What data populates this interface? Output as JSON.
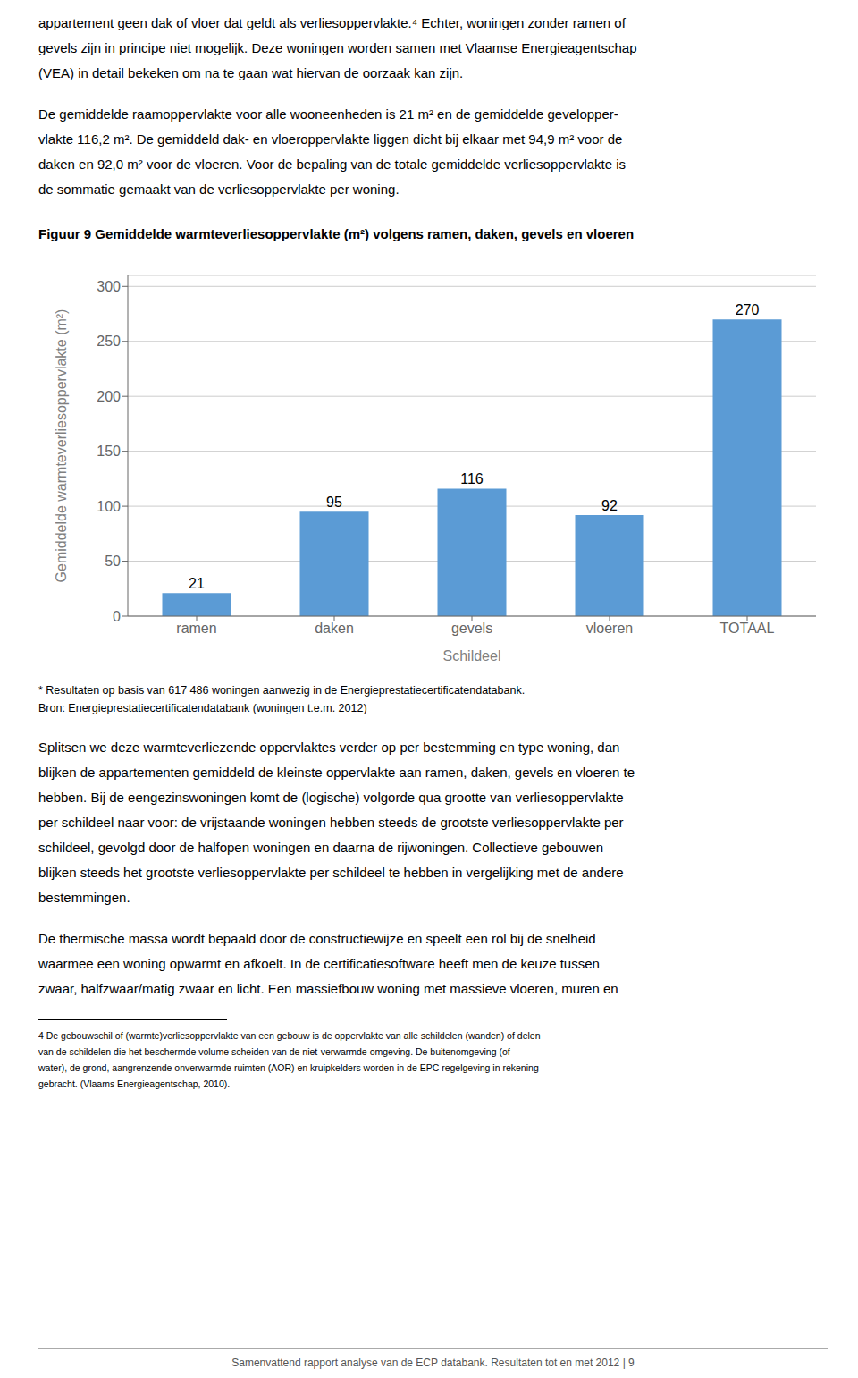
{
  "chart_data": {
    "type": "bar",
    "title": "Figuur 9 Gemiddelde warmteverliesoppervlakte (m²) volgens ramen, daken, gevels en vloeren",
    "categories": [
      "ramen",
      "daken",
      "gevels",
      "vloeren",
      "TOTAAL"
    ],
    "values": [
      21,
      95,
      116,
      92,
      270
    ],
    "color": "#5B9BD5",
    "xlabel": "Schildeel",
    "ylabel": "Gemiddelde warmteverliesoppervlakte (m²)",
    "ylim": [
      0,
      310
    ],
    "yticks": [
      0,
      50,
      100,
      150,
      200,
      250,
      300
    ],
    "grid": true,
    "data_labels": true,
    "annotations": [
      [
        "appartement geen dak of vloer dat geldt als verliesoppervlakte.⁴ Echter, woningen zonder ramen of",
        "gevels zijn in principe niet mogelijk. Deze woningen worden samen met Vlaamse Energieagentschap",
        "(VEA) in detail bekeken om na te gaan wat hiervan de oorzaak kan zijn."
      ],
      [
        "De gemiddelde raamoppervlakte voor alle wooneenheden is 21 m² en de gemiddelde gevelopper-",
        "vlakte 116,2 m². De gemiddeld dak- en vloeroppervlakte liggen dicht bij elkaar met 94,9 m² voor de",
        "daken en 92,0 m² voor de vloeren. Voor de bepaling van de totale gemiddelde verliesoppervlakte is",
        "de sommatie gemaakt van de verliesoppervlakte per woning."
      ],
      [
        "* Resultaten op basis van 617 486 woningen aanwezig in de Energieprestatiecertificatendatabank.",
        "Bron: Energieprestatiecertificatendatabank (woningen t.e.m. 2012)"
      ],
      [
        "Splitsen we deze warmteverliezende oppervlaktes verder op per bestemming en type woning, dan",
        "blijken de appartementen gemiddeld de kleinste oppervlakte aan ramen, daken, gevels en vloeren te",
        "hebben. Bij de eengezinswoningen komt de (logische) volgorde qua grootte van verliesoppervlakte",
        "per schildeel naar voor: de vrijstaande woningen hebben steeds de grootste verliesoppervlakte per",
        "schildeel, gevolgd door de halfopen woningen en daarna de rijwoningen. Collectieve gebouwen",
        "blijken steeds het grootste verliesoppervlakte per schildeel te hebben in vergelijking met de andere",
        "bestemmingen."
      ],
      [
        "De thermische massa wordt bepaald door de constructiewijze en speelt een rol bij de snelheid",
        "waarmee een woning opwarmt en afkoelt. In de certificatiesoftware heeft men de keuze tussen",
        "zwaar, halfzwaar/matig zwaar en licht. Een massiefbouw woning met massieve vloeren, muren en"
      ],
      [
        "4 De gebouwschil of (warmte)verliesoppervlakte van een gebouw is de oppervlakte van alle schildelen (wanden) of delen",
        "van de schildelen die het beschermde volume scheiden van de niet-verwarmde omgeving. De buitenomgeving (of",
        "water), de grond, aangrenzende onverwarmde ruimten (AOR) en kruipkelders worden in de EPC regelgeving in rekening",
        "gebracht. (Vlaams Energieagentschap, 2010)."
      ],
      [
        "Samenvattend rapport analyse van de ECP databank. Resultaten tot en met 2012 | 9"
      ]
    ]
  }
}
